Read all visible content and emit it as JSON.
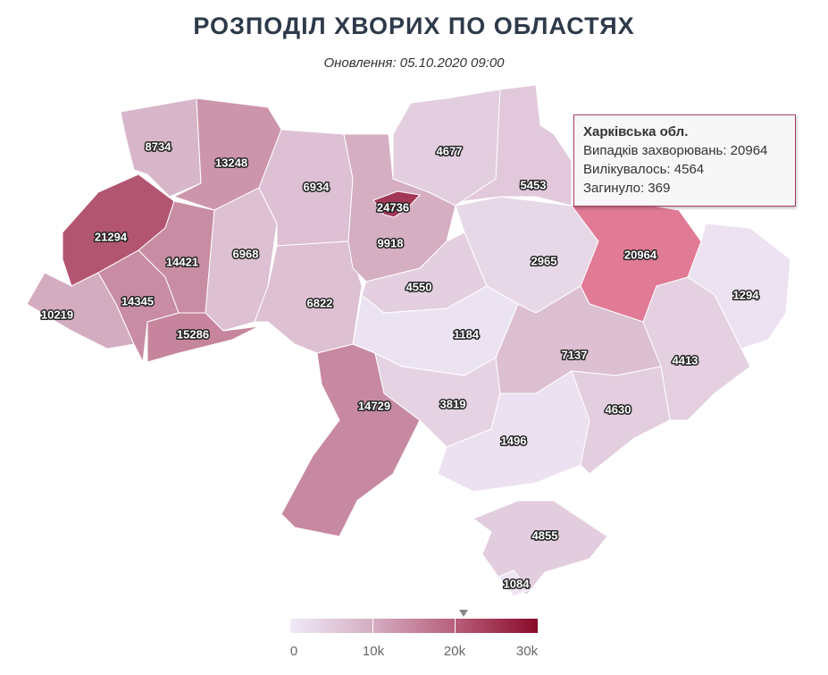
{
  "title": "РОЗПОДІЛ ХВОРИХ ПО ОБЛАСТЯХ",
  "subtitle": "Оновлення: 05.10.2020 09:00",
  "tooltip": {
    "region": "Харківська обл.",
    "cases": "Випадків захворювань: 20964",
    "recovered": "Вилікувалось: 4564",
    "deaths": "Загинуло: 369"
  },
  "colors": {
    "min": "#efeaf8",
    "mid1": "#d5aec2",
    "mid2": "#b8607c",
    "max": "#8a0a2a",
    "hover": "#e07a95",
    "tooltip_border": "#a8415e"
  },
  "legend": {
    "ticks": [
      "0",
      "10k",
      "20k",
      "30k"
    ],
    "min": 0,
    "max": 30000,
    "marker_value": 20964
  },
  "regions": [
    {
      "value": 8734
    },
    {
      "value": 13248
    },
    {
      "value": 21294
    },
    {
      "value": 14421
    },
    {
      "value": 6968
    },
    {
      "value": 10219
    },
    {
      "value": 14345
    },
    {
      "value": 15286
    },
    {
      "value": 6934
    },
    {
      "value": 6822
    },
    {
      "value": 9918
    },
    {
      "value": 24736
    },
    {
      "value": 4677
    },
    {
      "value": 5453
    },
    {
      "value": 2965
    },
    {
      "value": 4550
    },
    {
      "value": 20964,
      "highlighted": true
    },
    {
      "value": 1294
    },
    {
      "value": 4413
    },
    {
      "value": 7137
    },
    {
      "value": 1184
    },
    {
      "value": 14729
    },
    {
      "value": 3819
    },
    {
      "value": 1496
    },
    {
      "value": 4630
    },
    {
      "value": 4855
    },
    {
      "value": 1084
    }
  ]
}
